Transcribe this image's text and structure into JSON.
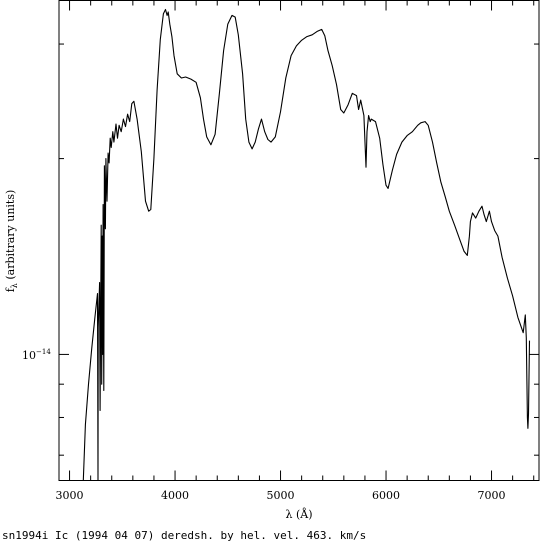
{
  "chart_data": {
    "type": "line",
    "xlabel": "λ (Å)",
    "ylabel_main": "f",
    "ylabel_sub": "λ",
    "ylabel_rest": " (arbitrary units)",
    "y_scale": "log",
    "xlim": [
      2900,
      7450
    ],
    "ylim": [
      6.4e-15,
      3.5e-14
    ],
    "x_ticks": [
      3000,
      4000,
      5000,
      6000,
      7000
    ],
    "x_tick_labels": [
      "3000",
      "4000",
      "5000",
      "6000",
      "7000"
    ],
    "y_labeled_tick": {
      "mantissa": "10",
      "exponent": "−14",
      "value": 1e-14
    },
    "caption": "sn1994i Ic (1994 04 07) deredsh. by hel. vel.   463. km/s",
    "series": [
      {
        "x": [
          3130,
          3150,
          3180,
          3210,
          3240,
          3265,
          3270,
          3272,
          3285,
          3290,
          3300,
          3305,
          3310,
          3313,
          3318,
          3325,
          3330,
          3340,
          3345,
          3355,
          3365,
          3375,
          3385,
          3395,
          3410,
          3420,
          3440,
          3455,
          3470,
          3490,
          3510,
          3530,
          3550,
          3570,
          3590,
          3610,
          3640,
          3680,
          3720,
          3750,
          3770,
          3800,
          3830,
          3860,
          3890,
          3910,
          3925,
          3935,
          3950,
          3970,
          3990,
          4020,
          4060,
          4100,
          4150,
          4200,
          4240,
          4270,
          4300,
          4340,
          4380,
          4420,
          4460,
          4500,
          4540,
          4570,
          4600,
          4640,
          4670,
          4700,
          4730,
          4760,
          4790,
          4820,
          4850,
          4880,
          4910,
          4950,
          5000,
          5050,
          5100,
          5150,
          5200,
          5250,
          5300,
          5350,
          5390,
          5420,
          5450,
          5490,
          5530,
          5570,
          5600,
          5640,
          5680,
          5720,
          5740,
          5760,
          5790,
          5810,
          5820,
          5835,
          5850,
          5860,
          5900,
          5940,
          5970,
          6000,
          6020,
          6060,
          6100,
          6150,
          6200,
          6250,
          6300,
          6330,
          6370,
          6400,
          6440,
          6480,
          6520,
          6560,
          6600,
          6650,
          6700,
          6740,
          6770,
          6790,
          6800,
          6820,
          6850,
          6880,
          6910,
          6930,
          6950,
          6980,
          7000,
          7030,
          7060,
          7100,
          7150,
          7200,
          7250,
          7300,
          7320,
          7330,
          7340,
          7345,
          7350,
          7360
        ],
        "y": [
          6.3e-15,
          7.8e-15,
          9e-15,
          1.02e-14,
          1.14e-14,
          1.24e-14,
          6.2e-15,
          1.1e-14,
          1.29e-14,
          8.2e-15,
          1.58e-14,
          9e-15,
          1.52e-14,
          1e-14,
          1.7e-14,
          8.8e-15,
          1.95e-14,
          1.56e-14,
          2e-14,
          1.72e-14,
          2.04e-14,
          1.97e-14,
          2.15e-14,
          2.08e-14,
          2.2e-14,
          2.12e-14,
          2.26e-14,
          2.15e-14,
          2.25e-14,
          2.2e-14,
          2.3e-14,
          2.24e-14,
          2.34e-14,
          2.28e-14,
          2.43e-14,
          2.45e-14,
          2.3e-14,
          2.05e-14,
          1.72e-14,
          1.66e-14,
          1.67e-14,
          2e-14,
          2.55e-14,
          3.05e-14,
          3.34e-14,
          3.39e-14,
          3.32e-14,
          3.36e-14,
          3.22e-14,
          3.08e-14,
          2.88e-14,
          2.7e-14,
          2.66e-14,
          2.67e-14,
          2.65e-14,
          2.62e-14,
          2.48e-14,
          2.3e-14,
          2.16e-14,
          2.1e-14,
          2.18e-14,
          2.52e-14,
          2.93e-14,
          3.22e-14,
          3.32e-14,
          3.3e-14,
          3.1e-14,
          2.7e-14,
          2.3e-14,
          2.12e-14,
          2.07e-14,
          2.12e-14,
          2.22e-14,
          2.3e-14,
          2.2e-14,
          2.14e-14,
          2.12e-14,
          2.16e-14,
          2.36e-14,
          2.66e-14,
          2.88e-14,
          2.98e-14,
          3.04e-14,
          3.08e-14,
          3.1e-14,
          3.14e-14,
          3.16e-14,
          3.09e-14,
          2.93e-14,
          2.78e-14,
          2.6e-14,
          2.38e-14,
          2.35e-14,
          2.42e-14,
          2.52e-14,
          2.5e-14,
          2.38e-14,
          2.46e-14,
          2.33e-14,
          1.94e-14,
          2.2e-14,
          2.33e-14,
          2.28e-14,
          2.3e-14,
          2.28e-14,
          2.15e-14,
          1.96e-14,
          1.82e-14,
          1.8e-14,
          1.92e-14,
          2.03e-14,
          2.12e-14,
          2.17e-14,
          2.2e-14,
          2.25e-14,
          2.27e-14,
          2.28e-14,
          2.25e-14,
          2.12e-14,
          1.97e-14,
          1.84e-14,
          1.75e-14,
          1.66e-14,
          1.58e-14,
          1.5e-14,
          1.44e-14,
          1.42e-14,
          1.52e-14,
          1.6e-14,
          1.65e-14,
          1.62e-14,
          1.66e-14,
          1.69e-14,
          1.64e-14,
          1.6e-14,
          1.66e-14,
          1.6e-14,
          1.55e-14,
          1.52e-14,
          1.41e-14,
          1.31e-14,
          1.23e-14,
          1.14e-14,
          1.08e-14,
          1.15e-14,
          1.06e-14,
          8e-15,
          7.7e-15,
          8.1e-15,
          1.05e-14
        ]
      }
    ]
  }
}
